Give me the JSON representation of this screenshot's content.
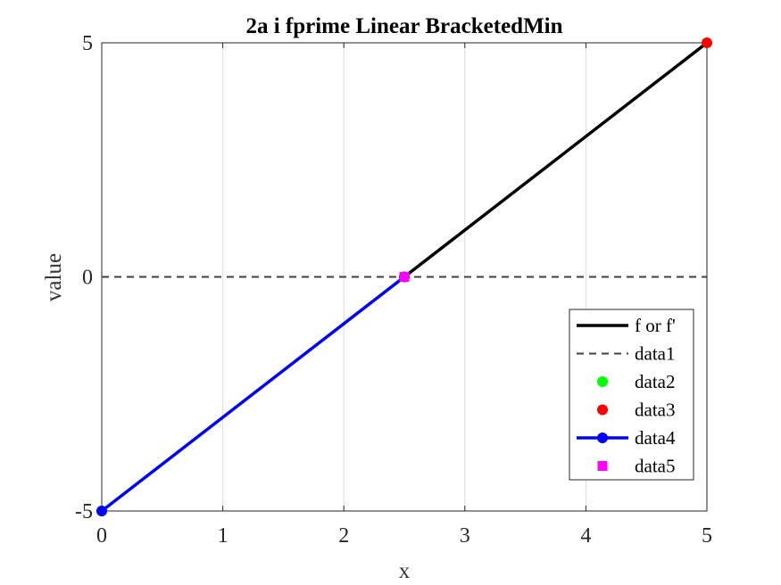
{
  "chart_data": {
    "type": "line",
    "title": "2a i fprime Linear BracketedMin",
    "xlabel": "x",
    "ylabel": "value",
    "xlim": [
      0,
      5
    ],
    "ylim": [
      -5,
      5
    ],
    "xticks": [
      0,
      1,
      2,
      3,
      4,
      5
    ],
    "yticks": [
      -5,
      0,
      5
    ],
    "xtick_labels": [
      "0",
      "1",
      "2",
      "3",
      "4",
      "5"
    ],
    "ytick_labels": [
      "-5",
      "0",
      "5"
    ],
    "grid": "vertical",
    "legend_position": "bottom-right",
    "series": [
      {
        "name": "f or f'",
        "style": "solid-line",
        "color": "#000000",
        "x": [
          2.5,
          5
        ],
        "y": [
          0,
          5
        ]
      },
      {
        "name": "data1",
        "style": "dashed-line",
        "color": "#404040",
        "x": [
          0,
          5
        ],
        "y": [
          0,
          0
        ]
      },
      {
        "name": "data2",
        "style": "circle-marker",
        "color": "#00ff00",
        "x": [],
        "y": []
      },
      {
        "name": "data3",
        "style": "circle-marker",
        "color": "#ff0000",
        "x": [
          5
        ],
        "y": [
          5
        ]
      },
      {
        "name": "data4",
        "style": "line-with-circle-markers",
        "color": "#0000ff",
        "x": [
          0,
          2.5
        ],
        "y": [
          -5,
          0
        ]
      },
      {
        "name": "data5",
        "style": "square-marker",
        "color": "#ff00ff",
        "x": [
          2.5
        ],
        "y": [
          0
        ]
      }
    ]
  }
}
